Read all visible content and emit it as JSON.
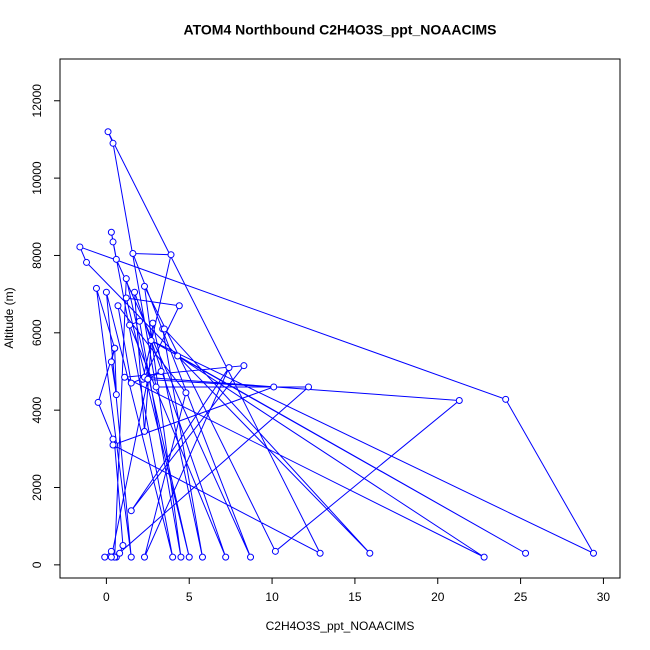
{
  "chart_data": {
    "type": "scatter",
    "title": "ATOM4 Northbound C2H4O3S_ppt_NOAACIMS",
    "x_label": "C2H4O3S_ppt_NOAACIMS",
    "y_label": "Altitude (m)",
    "color": "#0000ff",
    "x": [
      -0.1,
      0.3,
      0.6,
      0.8,
      1.0,
      0.5,
      0.4,
      -0.5,
      0.5,
      0.3,
      0.6,
      0.5,
      -0.6,
      1.5,
      0.0,
      4.0,
      0.3,
      0.4,
      0.6,
      8.7,
      1.6,
      3.9,
      2.2,
      10.1,
      0.4,
      12.9,
      0.1,
      0.4,
      3.0,
      12.2,
      0.5,
      1.2,
      5.0,
      1.2,
      4.4,
      2.3,
      21.3,
      10.2,
      2.3,
      4.5,
      2.0,
      1.4,
      7.2,
      1.7,
      2.3,
      2.8,
      5.8,
      3.4,
      3.5,
      15.9,
      -1.2,
      -1.6,
      24.1,
      29.4,
      2.7,
      25.3,
      4.3,
      22.8,
      1.1,
      8.3,
      1.5,
      7.4,
      2.3,
      4.8,
      0.7,
      1.5,
      3.3,
      2.5,
      0.3
    ],
    "values": [
      200,
      350,
      200,
      300,
      500,
      3100,
      3250,
      4200,
      5600,
      5250,
      4400,
      5600,
      7150,
      200,
      7050,
      200,
      8600,
      8350,
      7900,
      200,
      8050,
      8020,
      4800,
      4600,
      3100,
      300,
      11200,
      10900,
      4600,
      4600,
      200,
      7400,
      200,
      6900,
      6700,
      4850,
      4250,
      350,
      7200,
      200,
      6300,
      6200,
      200,
      7050,
      3450,
      6250,
      200,
      6100,
      6100,
      300,
      7820,
      8220,
      4280,
      300,
      5800,
      300,
      5400,
      200,
      4850,
      5150,
      1400,
      5100,
      200,
      4450,
      6700,
      4700,
      5000,
      4800,
      200
    ],
    "xlim": [
      -2.8,
      31
    ],
    "ylim": [
      -340,
      13080
    ],
    "xticks": [
      0,
      5,
      10,
      15,
      20,
      25,
      30
    ],
    "yticks": [
      0,
      2000,
      4000,
      6000,
      8000,
      10000,
      12000
    ]
  }
}
